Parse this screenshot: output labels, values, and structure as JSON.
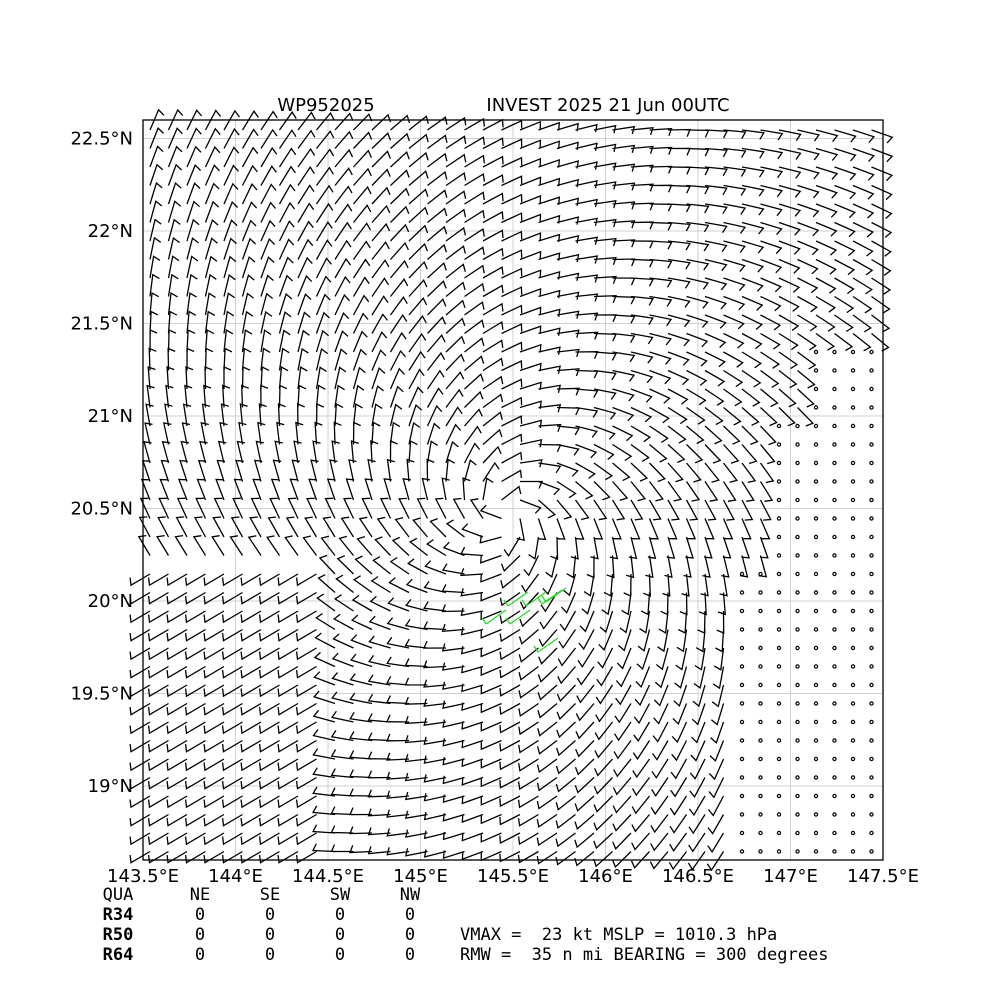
{
  "title_left": "WP952025",
  "title_right": "INVEST 2025 21 Jun 00UTC",
  "map": {
    "xlim": [
      143.5,
      147.5
    ],
    "ylim": [
      18.6,
      22.6
    ],
    "xticks": [
      {
        "value": 143.5,
        "label": "143.5°E"
      },
      {
        "value": 144,
        "label": "144°E"
      },
      {
        "value": 144.5,
        "label": "144.5°E"
      },
      {
        "value": 145,
        "label": "145°E"
      },
      {
        "value": 145.5,
        "label": "145.5°E"
      },
      {
        "value": 146,
        "label": "146°E"
      },
      {
        "value": 146.5,
        "label": "146.5°E"
      },
      {
        "value": 147,
        "label": "147°E"
      },
      {
        "value": 147.5,
        "label": "147.5°E"
      }
    ],
    "yticks": [
      {
        "value": 19,
        "label": "19°N"
      },
      {
        "value": 19.5,
        "label": "19.5°N"
      },
      {
        "value": 20,
        "label": "20°N"
      },
      {
        "value": 20.5,
        "label": "20.5°N"
      },
      {
        "value": 21,
        "label": "21°N"
      },
      {
        "value": 21.5,
        "label": "21.5°N"
      },
      {
        "value": 22,
        "label": "22°N"
      },
      {
        "value": 22.5,
        "label": "22.5°N"
      }
    ]
  },
  "table": {
    "header": [
      "QUA",
      "NE",
      "SE",
      "SW",
      "NW"
    ],
    "rows": [
      [
        "R34",
        0,
        0,
        0,
        0
      ],
      [
        "R50",
        0,
        0,
        0,
        0
      ],
      [
        "R64",
        0,
        0,
        0,
        0
      ]
    ]
  },
  "summary": [
    "VMAX =  23 kt MSLP = 1010.3 hPa",
    "RMW =  35 n mi BEARING = 300 degrees"
  ]
}
